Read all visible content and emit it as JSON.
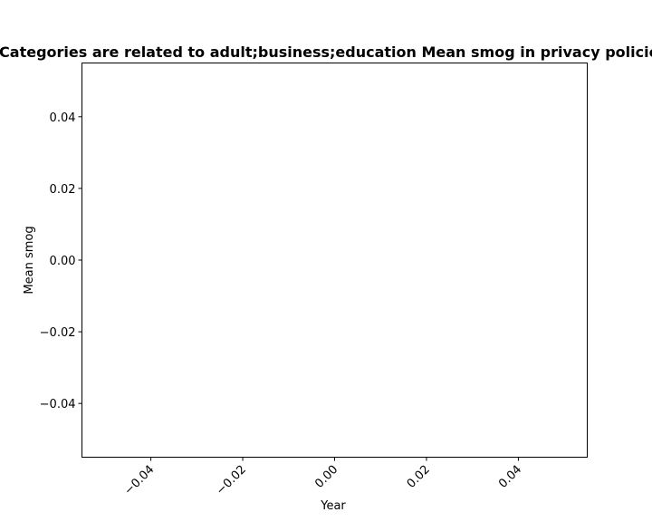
{
  "chart_data": {
    "type": "line",
    "title": "Categories are related to adult;business;education Mean smog in privacy policies",
    "xlabel": "Year",
    "ylabel": "Mean smog",
    "xlim": [
      -0.055,
      0.055
    ],
    "ylim": [
      -0.055,
      0.055
    ],
    "xticks": [
      -0.04,
      -0.02,
      0.0,
      0.02,
      0.04
    ],
    "xtick_labels": [
      "−0.04",
      "−0.02",
      "0.00",
      "0.02",
      "0.04"
    ],
    "yticks": [
      0.04,
      0.02,
      0.0,
      -0.02,
      -0.04
    ],
    "ytick_labels": [
      "0.04",
      "0.02",
      "0.00",
      "−0.02",
      "−0.04"
    ],
    "series": [],
    "grid": false,
    "legend": false
  }
}
